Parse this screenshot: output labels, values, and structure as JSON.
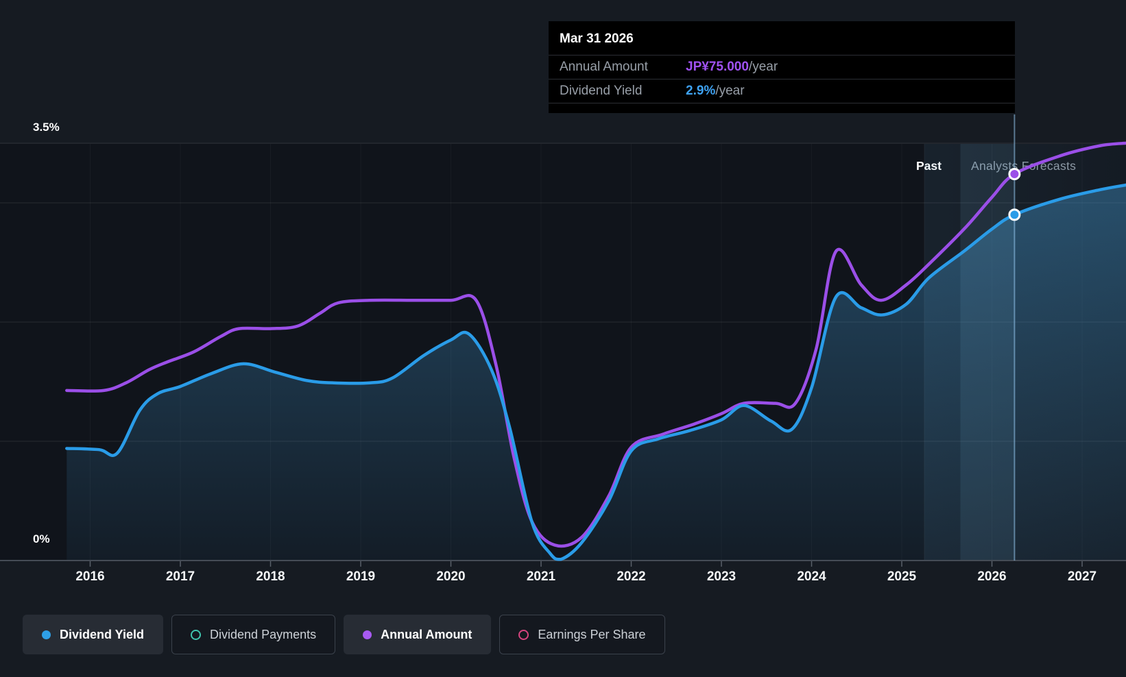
{
  "tooltip": {
    "date": "Mar 31 2026",
    "rows": [
      {
        "label": "Annual Amount",
        "value": "JP¥75.000",
        "suffix": "/year",
        "color": "#a052f2"
      },
      {
        "label": "Dividend Yield",
        "value": "2.9%",
        "suffix": "/year",
        "color": "#3ea2f2"
      }
    ]
  },
  "zones": {
    "past": "Past",
    "forecast": "Analysts Forecasts"
  },
  "y_axis": {
    "max_label": "3.5%",
    "min_label": "0%"
  },
  "legend": [
    {
      "label": "Dividend Yield",
      "marker": "dot",
      "color": "#2e9fe6",
      "active": true
    },
    {
      "label": "Dividend Payments",
      "marker": "ring",
      "color": "#3fc4ae",
      "active": false
    },
    {
      "label": "Annual Amount",
      "marker": "dot",
      "color": "#a85af2",
      "active": true
    },
    {
      "label": "Earnings Per Share",
      "marker": "ring",
      "color": "#d6447e",
      "active": false
    }
  ],
  "chart_data": {
    "type": "line",
    "x_ticks": [
      2016,
      2017,
      2018,
      2019,
      2020,
      2021,
      2022,
      2023,
      2024,
      2025,
      2026,
      2027
    ],
    "x_range": [
      2015.74,
      2027.49
    ],
    "ylim": [
      0,
      3.5
    ],
    "y_gridlines_pct": [
      1,
      2,
      3,
      3.5
    ],
    "grid": true,
    "legend_position": "bottom",
    "past_forecast_boundary_x": 2025.25,
    "highlight_band_x": [
      2025.65,
      2026.25
    ],
    "cursor": {
      "x": 2026.25,
      "dividend_yield_pct": 2.9,
      "annual_amount_jpy": 75
    },
    "series": [
      {
        "name": "Dividend Yield",
        "unit": "%",
        "color": "#2a9ce8",
        "points": [
          [
            2015.74,
            0.94
          ],
          [
            2016.1,
            0.93
          ],
          [
            2016.3,
            0.9
          ],
          [
            2016.55,
            1.26
          ],
          [
            2016.75,
            1.4
          ],
          [
            2017.0,
            1.46
          ],
          [
            2017.35,
            1.57
          ],
          [
            2017.7,
            1.65
          ],
          [
            2018.05,
            1.58
          ],
          [
            2018.4,
            1.51
          ],
          [
            2018.7,
            1.49
          ],
          [
            2019.1,
            1.49
          ],
          [
            2019.35,
            1.53
          ],
          [
            2019.7,
            1.72
          ],
          [
            2020.0,
            1.85
          ],
          [
            2020.2,
            1.9
          ],
          [
            2020.45,
            1.6
          ],
          [
            2020.65,
            1.12
          ],
          [
            2020.9,
            0.32
          ],
          [
            2021.1,
            0.06
          ],
          [
            2021.22,
            0.01
          ],
          [
            2021.45,
            0.15
          ],
          [
            2021.75,
            0.5
          ],
          [
            2022.0,
            0.92
          ],
          [
            2022.3,
            1.02
          ],
          [
            2022.65,
            1.09
          ],
          [
            2023.0,
            1.18
          ],
          [
            2023.25,
            1.3
          ],
          [
            2023.55,
            1.17
          ],
          [
            2023.78,
            1.1
          ],
          [
            2024.0,
            1.45
          ],
          [
            2024.27,
            2.21
          ],
          [
            2024.55,
            2.12
          ],
          [
            2024.78,
            2.06
          ],
          [
            2025.05,
            2.15
          ],
          [
            2025.3,
            2.37
          ],
          [
            2025.7,
            2.6
          ],
          [
            2026.0,
            2.78
          ],
          [
            2026.25,
            2.9
          ],
          [
            2026.75,
            3.03
          ],
          [
            2027.2,
            3.11
          ],
          [
            2027.49,
            3.15
          ]
        ]
      },
      {
        "name": "Annual Amount",
        "unit": "JP¥/year",
        "color": "#9b4fe8",
        "points": [
          [
            2015.74,
            33
          ],
          [
            2016.15,
            33
          ],
          [
            2016.4,
            34.5
          ],
          [
            2016.65,
            37
          ],
          [
            2016.85,
            38.5
          ],
          [
            2017.15,
            40.5
          ],
          [
            2017.45,
            43.5
          ],
          [
            2017.65,
            45
          ],
          [
            2018.0,
            45
          ],
          [
            2018.3,
            45.5
          ],
          [
            2018.55,
            48
          ],
          [
            2018.75,
            50
          ],
          [
            2019.1,
            50.5
          ],
          [
            2019.6,
            50.5
          ],
          [
            2020.0,
            50.5
          ],
          [
            2020.28,
            50.5
          ],
          [
            2020.5,
            38
          ],
          [
            2020.7,
            20
          ],
          [
            2020.9,
            7.5
          ],
          [
            2021.15,
            3
          ],
          [
            2021.45,
            4.5
          ],
          [
            2021.75,
            12.5
          ],
          [
            2022.0,
            22
          ],
          [
            2022.35,
            24.5
          ],
          [
            2022.7,
            26.5
          ],
          [
            2023.0,
            28.5
          ],
          [
            2023.25,
            30.5
          ],
          [
            2023.6,
            30.5
          ],
          [
            2023.82,
            30.5
          ],
          [
            2024.05,
            41
          ],
          [
            2024.27,
            60
          ],
          [
            2024.55,
            53.5
          ],
          [
            2024.77,
            50.5
          ],
          [
            2025.05,
            53.5
          ],
          [
            2025.3,
            57.5
          ],
          [
            2025.7,
            64.5
          ],
          [
            2026.0,
            70.5
          ],
          [
            2026.25,
            75
          ],
          [
            2026.75,
            78.5
          ],
          [
            2027.2,
            80.5
          ],
          [
            2027.49,
            81
          ]
        ]
      }
    ]
  }
}
